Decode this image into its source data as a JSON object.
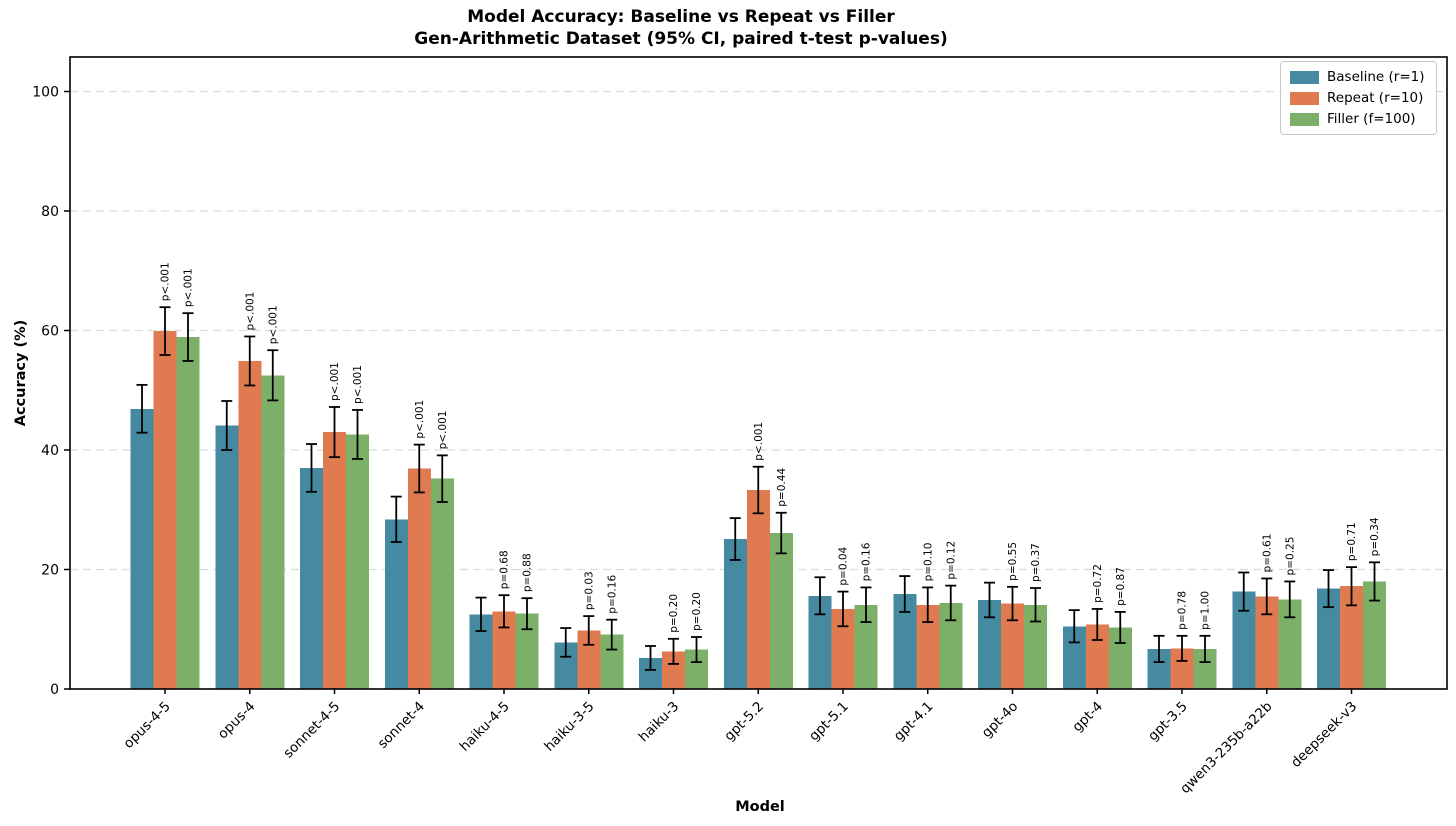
{
  "figure": {
    "title_line1": "Model Accuracy: Baseline vs Repeat vs Filler",
    "title_line2": "Gen-Arithmetic Dataset (95% CI, paired t-test p-values)"
  },
  "chart_data": {
    "type": "bar",
    "title": "Model Accuracy: Baseline vs Repeat vs Filler — Gen-Arithmetic Dataset (95% CI, paired t-test p-values)",
    "xlabel": "Model",
    "ylabel": "Accuracy (%)",
    "ylim": [
      0,
      105.8
    ],
    "yticks": [
      0,
      20,
      40,
      60,
      80,
      100
    ],
    "grid": "horizontal-dashed",
    "grid_color": "#dcdcdc",
    "legend_position": "upper right",
    "error_bar_note": "95% confidence intervals; p-values from paired t-test vs baseline, printed vertically above Repeat and Filler bars",
    "categories": [
      "opus-4-5",
      "opus-4",
      "sonnet-4-5",
      "sonnet-4",
      "haiku-4-5",
      "haiku-3-5",
      "haiku-3",
      "gpt-5.2",
      "gpt-5.1",
      "gpt-4.1",
      "gpt-4o",
      "gpt-4",
      "gpt-3.5",
      "qwen3-235b-a22b",
      "deepseek-v3"
    ],
    "series": [
      {
        "name": "Baseline (r=1)",
        "color": "#468AA2",
        "values": [
          46.9,
          44.1,
          37.0,
          28.4,
          12.5,
          7.8,
          5.2,
          25.1,
          15.6,
          15.9,
          14.9,
          10.5,
          6.7,
          16.3,
          16.8
        ],
        "errors": [
          4.0,
          4.1,
          4.0,
          3.8,
          2.8,
          2.4,
          2.0,
          3.5,
          3.1,
          3.0,
          2.9,
          2.7,
          2.2,
          3.2,
          3.1
        ]
      },
      {
        "name": "Repeat (r=10)",
        "color": "#E07A50",
        "values": [
          59.9,
          54.9,
          43.0,
          36.9,
          13.0,
          9.8,
          6.3,
          33.3,
          13.4,
          14.1,
          14.3,
          10.8,
          6.8,
          15.5,
          17.2
        ],
        "errors": [
          4.0,
          4.1,
          4.2,
          4.0,
          2.7,
          2.4,
          2.1,
          3.9,
          2.9,
          2.9,
          2.8,
          2.6,
          2.1,
          3.0,
          3.2
        ],
        "p_labels": [
          "p<.001",
          "p<.001",
          "p<.001",
          "p<.001",
          "p=0.68",
          "p=0.03",
          "p=0.20",
          "p<.001",
          "p=0.04",
          "p=0.10",
          "p=0.55",
          "p=0.72",
          "p=0.78",
          "p=0.61",
          "p=0.71"
        ]
      },
      {
        "name": "Filler (f=100)",
        "color": "#7CB068",
        "values": [
          58.9,
          52.5,
          42.6,
          35.2,
          12.6,
          9.1,
          6.6,
          26.1,
          14.1,
          14.4,
          14.1,
          10.3,
          6.7,
          15.0,
          18.0
        ],
        "errors": [
          4.0,
          4.2,
          4.1,
          3.9,
          2.6,
          2.5,
          2.1,
          3.4,
          2.9,
          2.9,
          2.8,
          2.6,
          2.2,
          3.0,
          3.2
        ],
        "p_labels": [
          "p<.001",
          "p<.001",
          "p<.001",
          "p<.001",
          "p=0.88",
          "p=0.16",
          "p=0.20",
          "p=0.44",
          "p=0.16",
          "p=0.12",
          "p=0.37",
          "p=0.87",
          "p=1.00",
          "p=0.25",
          "p=0.34"
        ]
      }
    ]
  }
}
